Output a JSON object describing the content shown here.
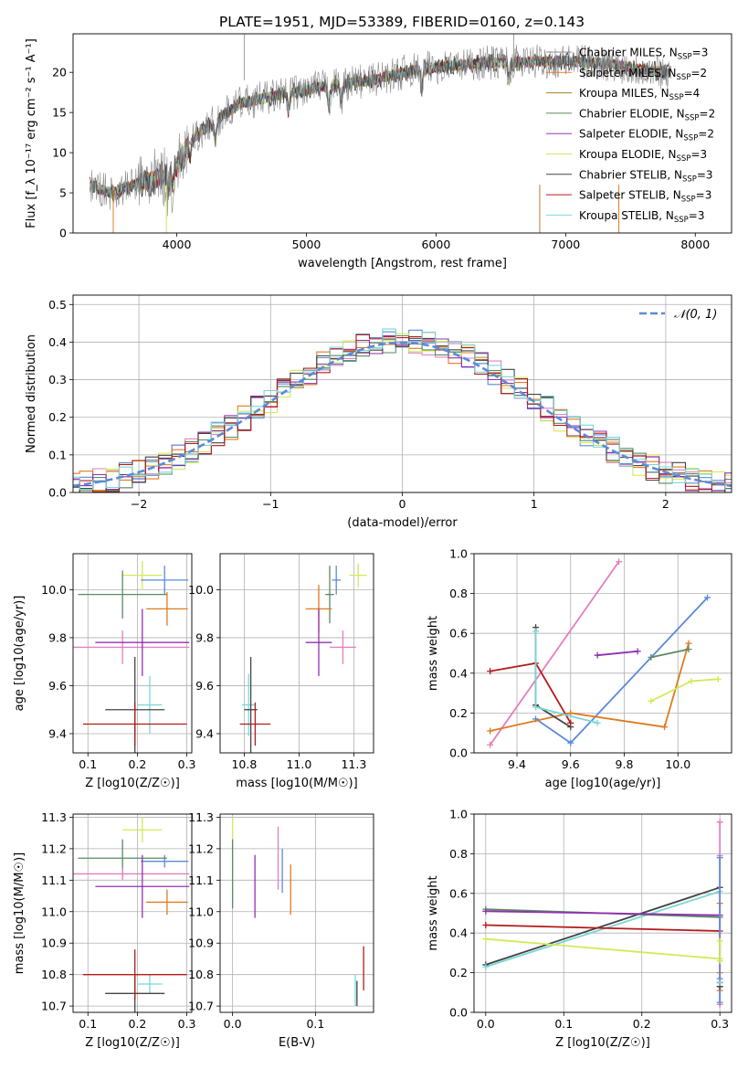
{
  "title": "PLATE=1951, MJD=53389, FIBERID=0160, z=0.143",
  "colors": {
    "Chabrier MILES": "#8a8a8a",
    "Salpeter MILES": "#e87f2a",
    "Kroupa MILES": "#b07d2a",
    "Chabrier ELODIE": "#5d8a5d",
    "Salpeter ELODIE": "#9a32b4",
    "Kroupa ELODIE": "#d4e45a",
    "Chabrier STELIB": "#444444",
    "Salpeter STELIB": "#b01c1c",
    "Kroupa STELIB": "#7fd8d8",
    "pink": "#e37fbf",
    "blue": "#5a8ad8",
    "orange": "#e07a1f",
    "lime": "#d2ea58",
    "green": "#5a8a62",
    "purple": "#9030b0",
    "darkgray": "#444444",
    "red": "#b41a1a",
    "cyan": "#7ad6d6",
    "axis": "#000000",
    "grid": "#b0b0b0"
  },
  "chart_data": [
    {
      "type": "line",
      "title": "PLATE=1951, MJD=53389, FIBERID=0160, z=0.143",
      "xlabel": "wavelength [Angstrom, rest frame]",
      "ylabel": "Flux [f_λ 10⁻¹⁷ erg cm⁻² s⁻¹ A⁻¹]",
      "xlim": [
        3200,
        8280
      ],
      "ylim": [
        0,
        24.8
      ],
      "xticks": [
        4000,
        5000,
        6000,
        7000,
        8000
      ],
      "yticks": [
        0,
        5,
        10,
        15,
        20
      ],
      "grid": false,
      "legend_position": "right",
      "continuum": {
        "x": [
          3330,
          3500,
          3700,
          3900,
          4000,
          4100,
          4300,
          4500,
          4800,
          5000,
          5200,
          5500,
          5800,
          6100,
          6400,
          6700,
          7000,
          7300,
          7600,
          7800
        ],
        "y": [
          5.9,
          5.0,
          6.2,
          7.0,
          8.2,
          11.5,
          14.0,
          16.2,
          17.2,
          17.8,
          18.4,
          19.0,
          20.2,
          20.8,
          21.2,
          21.3,
          21.4,
          21.1,
          20.3,
          20.0
        ]
      },
      "series": [
        {
          "name": "Chabrier MILES, N_SSP=3",
          "legend_label": "Chabrier MILES, N",
          "legend_sub": "SSP",
          "legend_tail": "=3"
        },
        {
          "name": "Salpeter MILES, N_SSP=2",
          "legend_label": "Salpeter MILES, N",
          "legend_sub": "SSP",
          "legend_tail": "=2"
        },
        {
          "name": "Kroupa MILES, N_SSP=4",
          "legend_label": "Kroupa MILES, N",
          "legend_sub": "SSP",
          "legend_tail": "=4"
        },
        {
          "name": "Chabrier ELODIE, N_SSP=2",
          "legend_label": "Chabrier ELODIE, N",
          "legend_sub": "SSP",
          "legend_tail": "=2"
        },
        {
          "name": "Salpeter ELODIE, N_SSP=2",
          "legend_label": "Salpeter ELODIE, N",
          "legend_sub": "SSP",
          "legend_tail": "=2"
        },
        {
          "name": "Kroupa ELODIE, N_SSP=3",
          "legend_label": "Kroupa ELODIE, N",
          "legend_sub": "SSP",
          "legend_tail": "=3"
        },
        {
          "name": "Chabrier STELIB, N_SSP=3",
          "legend_label": "Chabrier STELIB, N",
          "legend_sub": "SSP",
          "legend_tail": "=3"
        },
        {
          "name": "Salpeter STELIB, N_SSP=3",
          "legend_label": "Salpeter STELIB, N",
          "legend_sub": "SSP",
          "legend_tail": "=3"
        },
        {
          "name": "Kroupa STELIB, N_SSP=3",
          "legend_label": "Kroupa STELIB, N",
          "legend_sub": "SSP",
          "legend_tail": "=3"
        }
      ]
    },
    {
      "type": "line",
      "subtype": "step-histogram",
      "xlabel": "(data-model)/error",
      "ylabel": "Normed distribution",
      "xlim": [
        -2.5,
        2.5
      ],
      "ylim": [
        0,
        0.525
      ],
      "xticks": [
        -2,
        -1,
        0,
        1,
        2
      ],
      "yticks": [
        0.0,
        0.1,
        0.2,
        0.3,
        0.4,
        0.5
      ],
      "grid": true,
      "legend_position": "top-right",
      "legend": "𝒩(0, 1)",
      "bin_width": 0.1,
      "series_colors": [
        "#e37fbf",
        "#5a8ad8",
        "#e07a1f",
        "#d2ea58",
        "#5a8a62",
        "#9030b0",
        "#444444",
        "#b01c1c",
        "#7ad6d6"
      ]
    },
    {
      "type": "scatter",
      "subtype": "errorbar",
      "xlabel": "Z [log10(Z/Z☉)]",
      "ylabel": "age  [log10(age/yr)]",
      "xlim": [
        0.07,
        0.31
      ],
      "ylim": [
        9.32,
        10.15
      ],
      "xticks": [
        0.1,
        0.2,
        0.3
      ],
      "yticks": [
        9.4,
        9.6,
        9.8,
        10.0
      ],
      "grid": true,
      "points": [
        {
          "c": "lime",
          "x": 0.21,
          "y": 10.06,
          "xe": 0.04,
          "ye": 0.06
        },
        {
          "c": "blue",
          "x": 0.255,
          "y": 10.04,
          "xe": 0.048,
          "ye": 0.06
        },
        {
          "c": "green",
          "x": 0.17,
          "y": 9.98,
          "xe": 0.09,
          "ye": 0.1
        },
        {
          "c": "orange",
          "x": 0.26,
          "y": 9.92,
          "xe": 0.042,
          "ye": 0.07
        },
        {
          "c": "pink",
          "x": 0.17,
          "y": 9.76,
          "xe": 0.135,
          "ye": 0.07
        },
        {
          "c": "purple",
          "x": 0.21,
          "y": 9.78,
          "xe": 0.095,
          "ye": 0.14
        },
        {
          "c": "cyan",
          "x": 0.225,
          "y": 9.52,
          "xe": 0.025,
          "ye": 0.12
        },
        {
          "c": "darkgray",
          "x": 0.195,
          "y": 9.5,
          "xe": 0.06,
          "ye": 0.22
        },
        {
          "c": "red",
          "x": 0.195,
          "y": 9.44,
          "xe": 0.105,
          "ye": 0.09
        }
      ]
    },
    {
      "type": "scatter",
      "subtype": "errorbar",
      "xlabel": "mass [log10(M/M☉)]",
      "ylabel": "",
      "xlim": [
        10.64,
        11.34
      ],
      "ylim": [
        9.32,
        10.15
      ],
      "xticks": [
        10.75,
        11.0,
        11.25
      ],
      "yticks": [
        9.4,
        9.6,
        9.8,
        10.0
      ],
      "grid": true,
      "points": [
        {
          "c": "lime",
          "x": 11.27,
          "y": 10.06,
          "xe": 0.04,
          "ye": 0.05
        },
        {
          "c": "blue",
          "x": 11.17,
          "y": 10.04,
          "xe": 0.02,
          "ye": 0.06
        },
        {
          "c": "green",
          "x": 11.14,
          "y": 9.98,
          "xe": 0.02,
          "ye": 0.12
        },
        {
          "c": "orange",
          "x": 11.09,
          "y": 9.92,
          "xe": 0.06,
          "ye": 0.1
        },
        {
          "c": "pink",
          "x": 11.2,
          "y": 9.76,
          "xe": 0.06,
          "ye": 0.07
        },
        {
          "c": "purple",
          "x": 11.09,
          "y": 9.78,
          "xe": 0.06,
          "ye": 0.14
        },
        {
          "c": "cyan",
          "x": 10.77,
          "y": 9.52,
          "xe": 0.03,
          "ye": 0.13
        },
        {
          "c": "darkgray",
          "x": 10.78,
          "y": 9.5,
          "xe": 0.03,
          "ye": 0.22
        },
        {
          "c": "red",
          "x": 10.8,
          "y": 9.44,
          "xe": 0.07,
          "ye": 0.09
        }
      ]
    },
    {
      "type": "line",
      "xlabel": "age  [log10(age/yr)]",
      "ylabel": "mass weight",
      "xlim": [
        9.24,
        10.2
      ],
      "ylim": [
        0.0,
        1.0
      ],
      "xticks": [
        9.4,
        9.6,
        9.8,
        10.0
      ],
      "yticks": [
        0.0,
        0.2,
        0.4,
        0.6,
        0.8,
        1.0
      ],
      "grid": true,
      "series": [
        {
          "c": "pink",
          "x": [
            9.3,
            9.78
          ],
          "y": [
            0.04,
            0.96
          ]
        },
        {
          "c": "blue",
          "x": [
            9.47,
            9.6,
            10.11
          ],
          "y": [
            0.17,
            0.05,
            0.78
          ]
        },
        {
          "c": "orange",
          "x": [
            9.3,
            9.6,
            9.95,
            10.04
          ],
          "y": [
            0.11,
            0.2,
            0.13,
            0.55
          ]
        },
        {
          "c": "lime",
          "x": [
            9.9,
            10.05,
            10.15
          ],
          "y": [
            0.26,
            0.36,
            0.37
          ]
        },
        {
          "c": "green",
          "x": [
            9.9,
            10.04
          ],
          "y": [
            0.48,
            0.52
          ]
        },
        {
          "c": "purple",
          "x": [
            9.7,
            9.85
          ],
          "y": [
            0.49,
            0.51
          ]
        },
        {
          "c": "darkgray",
          "x": [
            9.47,
            9.47,
            9.6
          ],
          "y": [
            0.63,
            0.24,
            0.13
          ]
        },
        {
          "c": "red",
          "x": [
            9.3,
            9.47,
            9.6
          ],
          "y": [
            0.41,
            0.45,
            0.15
          ]
        },
        {
          "c": "cyan",
          "x": [
            9.47,
            9.47,
            9.7
          ],
          "y": [
            0.61,
            0.23,
            0.15
          ]
        }
      ]
    },
    {
      "type": "scatter",
      "subtype": "errorbar",
      "xlabel": "Z [log10(Z/Z☉)]",
      "ylabel": "mass [log10(M/M☉)]",
      "xlim": [
        0.07,
        0.31
      ],
      "ylim": [
        10.68,
        11.31
      ],
      "xticks": [
        0.1,
        0.2,
        0.3
      ],
      "yticks": [
        10.7,
        10.8,
        10.9,
        11.0,
        11.1,
        11.2,
        11.3
      ],
      "grid": true,
      "points": [
        {
          "c": "lime",
          "x": 0.21,
          "y": 11.26,
          "xe": 0.04,
          "ye": 0.04
        },
        {
          "c": "blue",
          "x": 0.255,
          "y": 11.16,
          "xe": 0.048,
          "ye": 0.02
        },
        {
          "c": "green",
          "x": 0.17,
          "y": 11.17,
          "xe": 0.09,
          "ye": 0.06
        },
        {
          "c": "orange",
          "x": 0.26,
          "y": 11.03,
          "xe": 0.042,
          "ye": 0.04
        },
        {
          "c": "pink",
          "x": 0.17,
          "y": 11.12,
          "xe": 0.135,
          "ye": 0.02
        },
        {
          "c": "purple",
          "x": 0.21,
          "y": 11.08,
          "xe": 0.095,
          "ye": 0.1
        },
        {
          "c": "cyan",
          "x": 0.225,
          "y": 10.77,
          "xe": 0.025,
          "ye": 0.03
        },
        {
          "c": "darkgray",
          "x": 0.195,
          "y": 10.74,
          "xe": 0.06,
          "ye": 0.06
        },
        {
          "c": "red",
          "x": 0.195,
          "y": 10.8,
          "xe": 0.105,
          "ye": 0.08
        }
      ]
    },
    {
      "type": "scatter",
      "subtype": "errorbar",
      "xlabel": "E(B-V)",
      "ylabel": "",
      "xlim": [
        -0.015,
        0.17
      ],
      "ylim": [
        10.68,
        11.31
      ],
      "xticks": [
        0.0,
        0.1
      ],
      "yticks": [
        10.7,
        10.8,
        10.9,
        11.0,
        11.1,
        11.2,
        11.3
      ],
      "grid": true,
      "points": [
        {
          "c": "lime",
          "x": 0.0,
          "y": 11.24,
          "xe": 0.0,
          "ye": 0.06
        },
        {
          "c": "green",
          "x": 0.0,
          "y": 11.12,
          "xe": 0.0,
          "ye": 0.11
        },
        {
          "c": "purple",
          "x": 0.027,
          "y": 11.08,
          "xe": 0.0,
          "ye": 0.1
        },
        {
          "c": "pink",
          "x": 0.055,
          "y": 11.17,
          "xe": 0.0,
          "ye": 0.1
        },
        {
          "c": "blue",
          "x": 0.06,
          "y": 11.13,
          "xe": 0.0,
          "ye": 0.07
        },
        {
          "c": "orange",
          "x": 0.07,
          "y": 11.07,
          "xe": 0.0,
          "ye": 0.08
        },
        {
          "c": "cyan",
          "x": 0.148,
          "y": 10.75,
          "xe": 0.0,
          "ye": 0.05
        },
        {
          "c": "darkgray",
          "x": 0.15,
          "y": 10.74,
          "xe": 0.0,
          "ye": 0.04
        },
        {
          "c": "red",
          "x": 0.158,
          "y": 10.82,
          "xe": 0.0,
          "ye": 0.07
        }
      ]
    },
    {
      "type": "line",
      "xlabel": "Z [log10(Z/Z☉)]",
      "ylabel": "mass weight",
      "xlim": [
        -0.015,
        0.315
      ],
      "ylim": [
        0.0,
        1.0
      ],
      "xticks": [
        0.0,
        0.1,
        0.2,
        0.3
      ],
      "yticks": [
        0.0,
        0.2,
        0.4,
        0.6,
        0.8,
        1.0
      ],
      "grid": true,
      "series": [
        {
          "c": "darkgray",
          "x": [
            0.0,
            0.3
          ],
          "y": [
            0.24,
            0.63
          ]
        },
        {
          "c": "cyan",
          "x": [
            0.0,
            0.3
          ],
          "y": [
            0.23,
            0.61
          ]
        },
        {
          "c": "green",
          "x": [
            0.0,
            0.3
          ],
          "y": [
            0.52,
            0.48
          ]
        },
        {
          "c": "purple",
          "x": [
            0.0,
            0.3
          ],
          "y": [
            0.51,
            0.49
          ]
        },
        {
          "c": "red",
          "x": [
            0.0,
            0.3
          ],
          "y": [
            0.44,
            0.41
          ]
        },
        {
          "c": "lime",
          "x": [
            0.0,
            0.3
          ],
          "y": [
            0.37,
            0.27
          ]
        }
      ],
      "vertical_points_at_x": 0.3,
      "vertical_points": [
        {
          "c": "pink",
          "y": [
            0.04,
            0.96,
            0.79
          ]
        },
        {
          "c": "orange",
          "y": [
            0.11,
            0.13,
            0.2,
            0.55
          ]
        },
        {
          "c": "blue",
          "y": [
            0.05,
            0.17,
            0.78
          ]
        },
        {
          "c": "lime",
          "y": [
            0.26,
            0.36
          ]
        },
        {
          "c": "darkgray",
          "y": [
            0.13
          ]
        },
        {
          "c": "red",
          "y": [
            0.15
          ]
        },
        {
          "c": "cyan",
          "y": [
            0.15
          ]
        }
      ]
    }
  ]
}
